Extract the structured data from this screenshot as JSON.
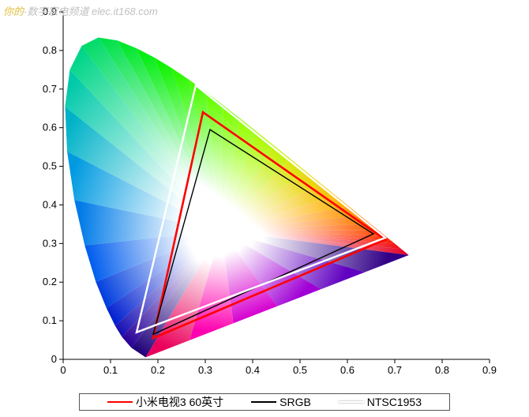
{
  "watermark": {
    "prefix": "你的",
    "dot": "·",
    "text": "数字家电频道",
    "url": "elec.it168.com"
  },
  "chart": {
    "type": "chromaticity",
    "xlim": [
      0,
      0.9
    ],
    "ylim": [
      0,
      0.9
    ],
    "xticks": [
      0,
      0.1,
      0.2,
      0.3,
      0.4,
      0.5,
      0.6,
      0.7,
      0.8,
      0.9
    ],
    "yticks": [
      0,
      0.1,
      0.2,
      0.3,
      0.4,
      0.5,
      0.6,
      0.7,
      0.8,
      0.9
    ],
    "tick_fontsize": 13,
    "axis_color": "#000000",
    "background_color": "#ffffff",
    "horseshoe": [
      [
        0.1741,
        0.005
      ],
      [
        0.144,
        0.0297
      ],
      [
        0.1241,
        0.0578
      ],
      [
        0.1096,
        0.0868
      ],
      [
        0.0913,
        0.1327
      ],
      [
        0.0687,
        0.2007
      ],
      [
        0.0454,
        0.295
      ],
      [
        0.0235,
        0.4127
      ],
      [
        0.0082,
        0.5384
      ],
      [
        0.0039,
        0.6548
      ],
      [
        0.0139,
        0.7502
      ],
      [
        0.0389,
        0.812
      ],
      [
        0.0743,
        0.8338
      ],
      [
        0.1142,
        0.8262
      ],
      [
        0.1547,
        0.8059
      ],
      [
        0.1929,
        0.7816
      ],
      [
        0.2296,
        0.7543
      ],
      [
        0.2658,
        0.7243
      ],
      [
        0.3016,
        0.6923
      ],
      [
        0.3373,
        0.6589
      ],
      [
        0.3731,
        0.6245
      ],
      [
        0.4087,
        0.5896
      ],
      [
        0.4441,
        0.5547
      ],
      [
        0.4788,
        0.5202
      ],
      [
        0.5125,
        0.4866
      ],
      [
        0.5448,
        0.4544
      ],
      [
        0.5752,
        0.4242
      ],
      [
        0.6029,
        0.3965
      ],
      [
        0.627,
        0.3725
      ],
      [
        0.6482,
        0.3514
      ],
      [
        0.6658,
        0.334
      ],
      [
        0.6801,
        0.3197
      ],
      [
        0.6915,
        0.3083
      ],
      [
        0.7006,
        0.2993
      ],
      [
        0.714,
        0.2859
      ],
      [
        0.73,
        0.27
      ]
    ],
    "horseshoe_stops": [
      {
        "p": 0.0,
        "c": "#1a006b"
      },
      {
        "p": 0.05,
        "c": "#2a00a0"
      },
      {
        "p": 0.1,
        "c": "#0020d0"
      },
      {
        "p": 0.16,
        "c": "#0060ee"
      },
      {
        "p": 0.22,
        "c": "#00a0e0"
      },
      {
        "p": 0.28,
        "c": "#00d0a0"
      },
      {
        "p": 0.35,
        "c": "#00e050"
      },
      {
        "p": 0.43,
        "c": "#00f000"
      },
      {
        "p": 0.52,
        "c": "#60ff00"
      },
      {
        "p": 0.6,
        "c": "#a0ff00"
      },
      {
        "p": 0.68,
        "c": "#e0e000"
      },
      {
        "p": 0.76,
        "c": "#ffb000"
      },
      {
        "p": 0.84,
        "c": "#ff6000"
      },
      {
        "p": 0.92,
        "c": "#ff2000"
      },
      {
        "p": 1.0,
        "c": "#e00030"
      }
    ],
    "white_point": [
      0.3333,
      0.3333
    ],
    "purple_line_colors": [
      "#1a006b",
      "#6000c0",
      "#c000e0",
      "#ff00b0",
      "#e00030"
    ],
    "gamuts": [
      {
        "name": "device",
        "label": "小米电视3 60英寸",
        "color": "#ff0000",
        "width": 2.6,
        "pts": [
          [
            0.19,
            0.055
          ],
          [
            0.295,
            0.64
          ],
          [
            0.68,
            0.31
          ]
        ]
      },
      {
        "name": "srgb",
        "label": "SRGB",
        "color": "#000000",
        "width": 1.4,
        "pts": [
          [
            0.19,
            0.065
          ],
          [
            0.31,
            0.595
          ],
          [
            0.655,
            0.325
          ]
        ]
      },
      {
        "name": "ntsc1953",
        "label": "NTSC1953",
        "color": "#ffffff",
        "width": 2.4,
        "pts": [
          [
            0.155,
            0.07
          ],
          [
            0.28,
            0.71
          ],
          [
            0.68,
            0.315
          ]
        ]
      }
    ]
  }
}
